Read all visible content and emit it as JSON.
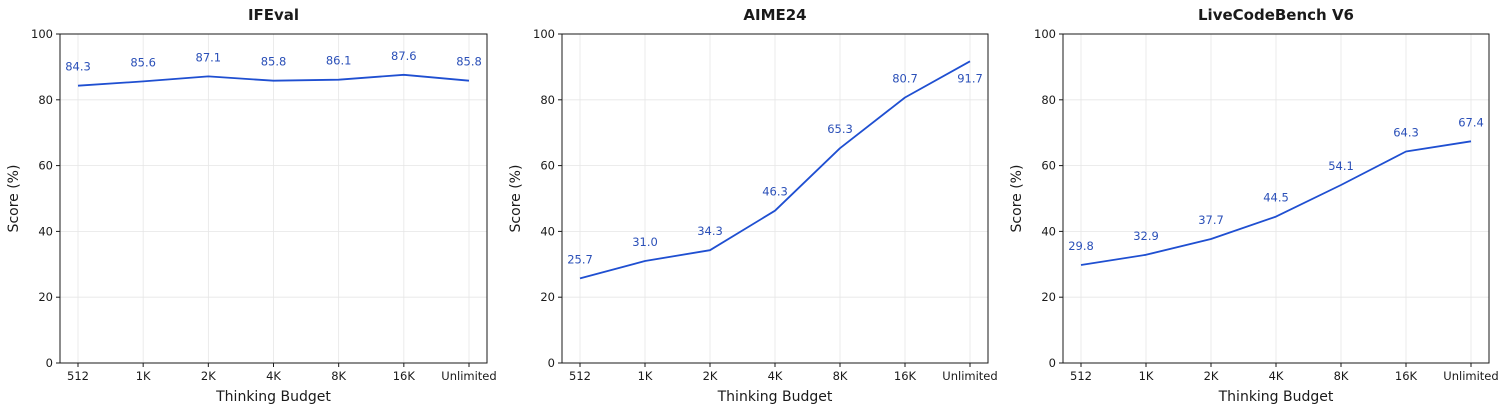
{
  "chart_data": [
    {
      "type": "line",
      "title": "IFEval",
      "xlabel": "Thinking Budget",
      "ylabel": "Score (%)",
      "categories": [
        "512",
        "1K",
        "2K",
        "4K",
        "8K",
        "16K",
        "Unlimited"
      ],
      "ylim": [
        0,
        100
      ],
      "yticks": [
        0,
        20,
        40,
        60,
        80,
        100
      ],
      "grid": true,
      "series": [
        {
          "values": [
            84.3,
            85.6,
            87.1,
            85.8,
            86.1,
            87.6,
            85.8
          ],
          "labels": [
            "84.3",
            "85.6",
            "87.1",
            "85.8",
            "86.1",
            "87.6",
            "85.8"
          ]
        }
      ]
    },
    {
      "type": "line",
      "title": "AIME24",
      "xlabel": "Thinking Budget",
      "ylabel": "Score (%)",
      "categories": [
        "512",
        "1K",
        "2K",
        "4K",
        "8K",
        "16K",
        "Unlimited"
      ],
      "ylim": [
        0,
        100
      ],
      "yticks": [
        0,
        20,
        40,
        60,
        80,
        100
      ],
      "grid": true,
      "series": [
        {
          "values": [
            25.7,
            31.0,
            34.3,
            46.3,
            65.3,
            80.7,
            91.7
          ],
          "labels": [
            "25.7",
            "31.0",
            "34.3",
            "46.3",
            "65.3",
            "80.7",
            "91.7"
          ]
        }
      ]
    },
    {
      "type": "line",
      "title": "LiveCodeBench V6",
      "xlabel": "Thinking Budget",
      "ylabel": "Score (%)",
      "categories": [
        "512",
        "1K",
        "2K",
        "4K",
        "8K",
        "16K",
        "Unlimited"
      ],
      "ylim": [
        0,
        100
      ],
      "yticks": [
        0,
        20,
        40,
        60,
        80,
        100
      ],
      "grid": true,
      "series": [
        {
          "values": [
            29.8,
            32.9,
            37.7,
            44.5,
            54.1,
            64.3,
            67.4
          ],
          "labels": [
            "29.8",
            "32.9",
            "37.7",
            "44.5",
            "54.1",
            "64.3",
            "67.4"
          ]
        }
      ]
    }
  ],
  "colors": {
    "line": "#1f4fd1",
    "data_label": "#2b50b8"
  }
}
